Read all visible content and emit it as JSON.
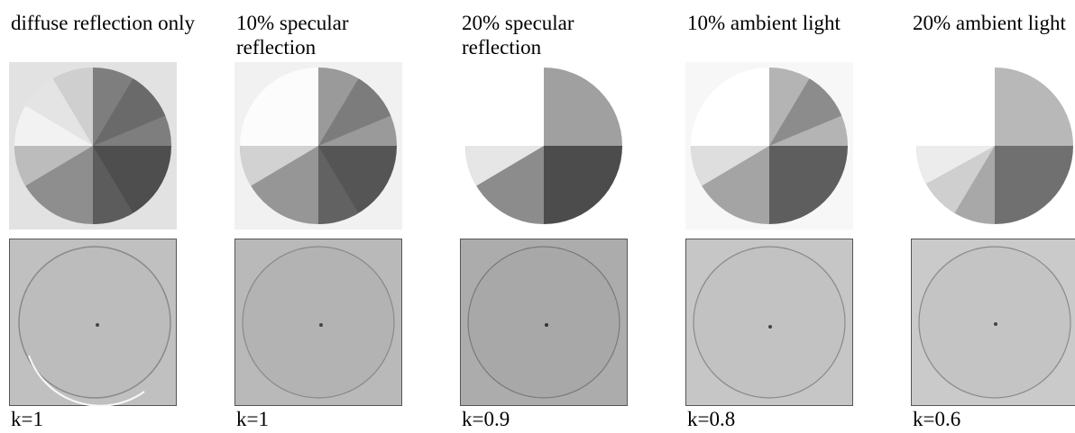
{
  "panels": [
    {
      "caption": "diffuse reflection only",
      "k_label": "k=1",
      "background": "#e2e2e2",
      "sector": "full",
      "bottom_background": "#c0c0c0",
      "bottom_disc": "#bcbcbc"
    },
    {
      "caption": "10% specular reflection",
      "k_label": "k=1",
      "background": "#f1f1f1",
      "sector": "full",
      "bottom_background": "#b9b9b9",
      "bottom_disc": "#b3b3b3"
    },
    {
      "caption": "20% specular reflection",
      "k_label": "k=0.9",
      "background": "#ffffff",
      "sector": "partial",
      "bottom_background": "#acacac",
      "bottom_disc": "#a8a8a8"
    },
    {
      "caption": "10% ambient light",
      "k_label": "k=0.8",
      "background": "#f7f7f7",
      "sector": "full",
      "bottom_background": "#c6c6c6",
      "bottom_disc": "#c2c2c2"
    },
    {
      "caption": "20% ambient light",
      "k_label": "k=0.6",
      "background": "#ffffff",
      "sector": "partial-large",
      "bottom_background": "#cacaca",
      "bottom_disc": "#c4c4c4"
    }
  ]
}
